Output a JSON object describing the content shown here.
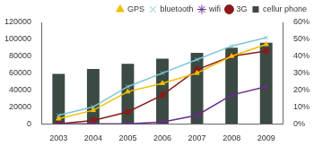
{
  "chart_data": {
    "type": "bar",
    "categories": [
      "2003",
      "2004",
      "2005",
      "2006",
      "2007",
      "2008",
      "2009"
    ],
    "series": [
      {
        "name": "cellur phone",
        "type": "bar",
        "color": "#3b4a42",
        "values": [
          59000,
          65000,
          71000,
          77000,
          84000,
          90000,
          96000
        ]
      },
      {
        "name": "GPS",
        "type": "line",
        "axis": "y2",
        "color": "#f0c000",
        "marker": "triangle",
        "values": [
          3,
          8,
          19,
          24,
          30,
          40,
          47
        ]
      },
      {
        "name": "bluetooth",
        "type": "line",
        "axis": "y2",
        "color": "#7ec6d8",
        "marker": "crossRot",
        "values": [
          5,
          10,
          22,
          30,
          38,
          46,
          51
        ]
      },
      {
        "name": "wifi",
        "type": "line",
        "axis": "y2",
        "color": "#6a2c8a",
        "marker": "star",
        "values": [
          0,
          0,
          0,
          1,
          5,
          17,
          22
        ]
      },
      {
        "name": "3G",
        "type": "line",
        "axis": "y2",
        "color": "#8b1a1a",
        "marker": "circle",
        "values": [
          0,
          2,
          7,
          17,
          32,
          40,
          43
        ]
      }
    ],
    "ylim": [
      0,
      120000
    ],
    "yticks": [
      0,
      20000,
      40000,
      60000,
      80000,
      100000,
      120000
    ],
    "y2lim": [
      0,
      60
    ],
    "y2ticks": [
      {
        "value": 0,
        "label": "0%"
      },
      {
        "value": 10,
        "label": "10%"
      },
      {
        "value": 20,
        "label": "20%"
      },
      {
        "value": 30,
        "label": "30%"
      },
      {
        "value": 40,
        "label": "40%"
      },
      {
        "value": 50,
        "label": "50%"
      },
      {
        "value": 60,
        "label": "60%"
      }
    ],
    "legend": "top",
    "grid": false
  }
}
